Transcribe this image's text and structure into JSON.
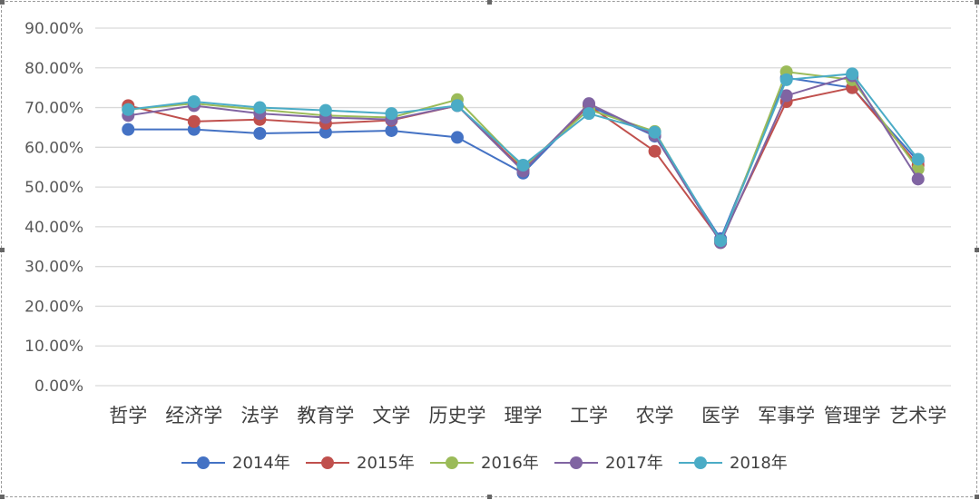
{
  "chart_data": {
    "type": "line",
    "categories": [
      "哲学",
      "经济学",
      "法学",
      "教育学",
      "文学",
      "历史学",
      "理学",
      "工学",
      "农学",
      "医学",
      "军事学",
      "管理学",
      "艺术学"
    ],
    "ylim": [
      0,
      90
    ],
    "yticks": [
      "0.00%",
      "10.00%",
      "20.00%",
      "30.00%",
      "40.00%",
      "50.00%",
      "60.00%",
      "70.00%",
      "80.00%",
      "90.00%"
    ],
    "grid": true,
    "legend_position": "bottom",
    "series": [
      {
        "name": "2014年",
        "color": "#4472C4",
        "values": [
          64.5,
          64.5,
          63.5,
          63.8,
          64.2,
          62.5,
          53.5,
          70.5,
          62.8,
          37.0,
          77.5,
          75.0,
          56.5
        ]
      },
      {
        "name": "2015年",
        "color": "#C0504D",
        "values": [
          70.5,
          66.5,
          67.0,
          66.0,
          66.8,
          70.5,
          54.5,
          70.5,
          59.0,
          36.5,
          71.5,
          75.0,
          55.5
        ]
      },
      {
        "name": "2016年",
        "color": "#9BBB59",
        "values": [
          69.5,
          71.0,
          69.5,
          68.0,
          67.5,
          72.0,
          55.0,
          69.5,
          64.0,
          36.0,
          79.0,
          77.0,
          54.5
        ]
      },
      {
        "name": "2017年",
        "color": "#8064A2",
        "values": [
          68.0,
          70.5,
          68.5,
          67.5,
          67.0,
          70.5,
          54.0,
          71.0,
          63.0,
          36.0,
          73.0,
          78.0,
          52.0
        ]
      },
      {
        "name": "2018年",
        "color": "#4BACC6",
        "values": [
          69.5,
          71.5,
          70.0,
          69.3,
          68.5,
          70.5,
          55.5,
          68.5,
          63.8,
          36.5,
          77.0,
          78.5,
          57.0
        ]
      }
    ]
  }
}
